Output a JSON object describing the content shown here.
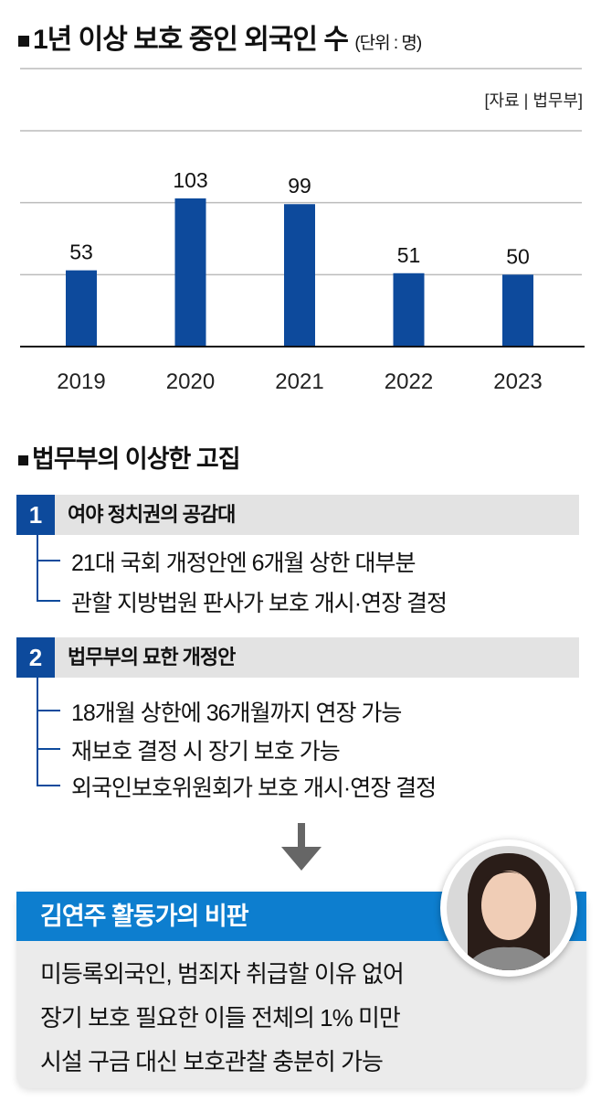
{
  "chart_data": {
    "type": "bar",
    "title": "1년 이상 보호 중인 외국인 수",
    "unit": "(단위 : 명)",
    "source": "[자료 | 법무부]",
    "categories": [
      "2019",
      "2020",
      "2021",
      "2022",
      "2023"
    ],
    "values": [
      53,
      103,
      99,
      51,
      50
    ],
    "ylim": [
      0,
      150
    ],
    "grid": true,
    "bar_color": "#0d4a9c"
  },
  "section": {
    "title": "법무부의 이상한 고집",
    "boxes": [
      {
        "num": "1",
        "label": "여야 정치권의 공감대",
        "items": [
          "21대 국회 개정안엔 6개월 상한 대부분",
          "관할 지방법원 판사가 보호 개시·연장 결정"
        ]
      },
      {
        "num": "2",
        "label": "법무부의 묘한 개정안",
        "items": [
          "18개월 상한에 36개월까지 연장 가능",
          "재보호 결정 시 장기 보호 가능",
          "외국인보호위원회가 보호 개시·연장 결정"
        ]
      }
    ]
  },
  "critique": {
    "title": "김연주 활동가의 비판",
    "lines": [
      "미등록외국인, 범죄자 취급할 이유 없어",
      "장기 보호 필요한 이들 전체의 1% 미만",
      "시설 구금 대신 보호관찰 충분히 가능"
    ],
    "accent": "#0d7ecf"
  }
}
